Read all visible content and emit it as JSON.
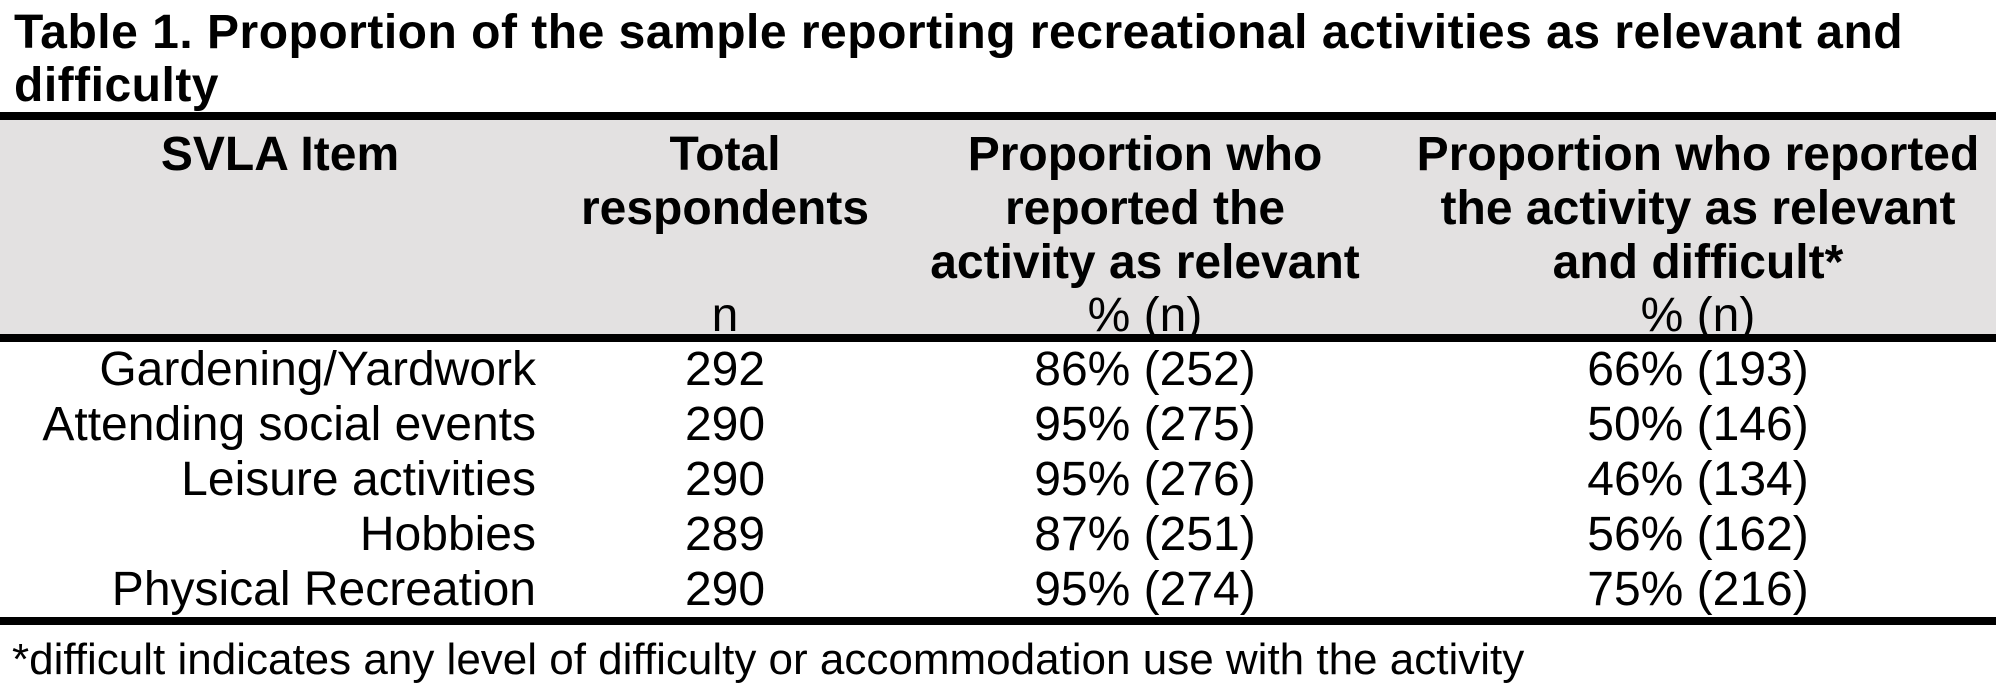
{
  "caption": "Table 1. Proportion of the sample reporting recreational activities as relevant and\ndifficulty",
  "table": {
    "columns": [
      {
        "label": "SVLA Item",
        "sub": ""
      },
      {
        "label": "Total\nrespondents",
        "sub": "n"
      },
      {
        "label": "Proportion who\nreported the\nactivity as relevant",
        "sub": "% (n)"
      },
      {
        "label": "Proportion who reported\nthe activity as relevant\nand difficult*",
        "sub": "% (n)"
      }
    ],
    "rows": [
      {
        "item": "Gardening/Yardwork",
        "total_n": "292",
        "relevant": "86% (252)",
        "relevant_difficult": "66% (193)"
      },
      {
        "item": "Attending social events",
        "total_n": "290",
        "relevant": "95% (275)",
        "relevant_difficult": "50% (146)"
      },
      {
        "item": "Leisure activities",
        "total_n": "290",
        "relevant": "95% (276)",
        "relevant_difficult": "46% (134)"
      },
      {
        "item": "Hobbies",
        "total_n": "289",
        "relevant": "87% (251)",
        "relevant_difficult": "56% (162)"
      },
      {
        "item": "Physical Recreation",
        "total_n": "290",
        "relevant": "95% (274)",
        "relevant_difficult": "75% (216)"
      }
    ],
    "footnote": "*difficult indicates any level of difficulty or accommodation use with the activity"
  },
  "colors": {
    "page_background": "#ffffff",
    "header_background": "#e3e1e1",
    "rule": "#000000",
    "text": "#000000"
  }
}
